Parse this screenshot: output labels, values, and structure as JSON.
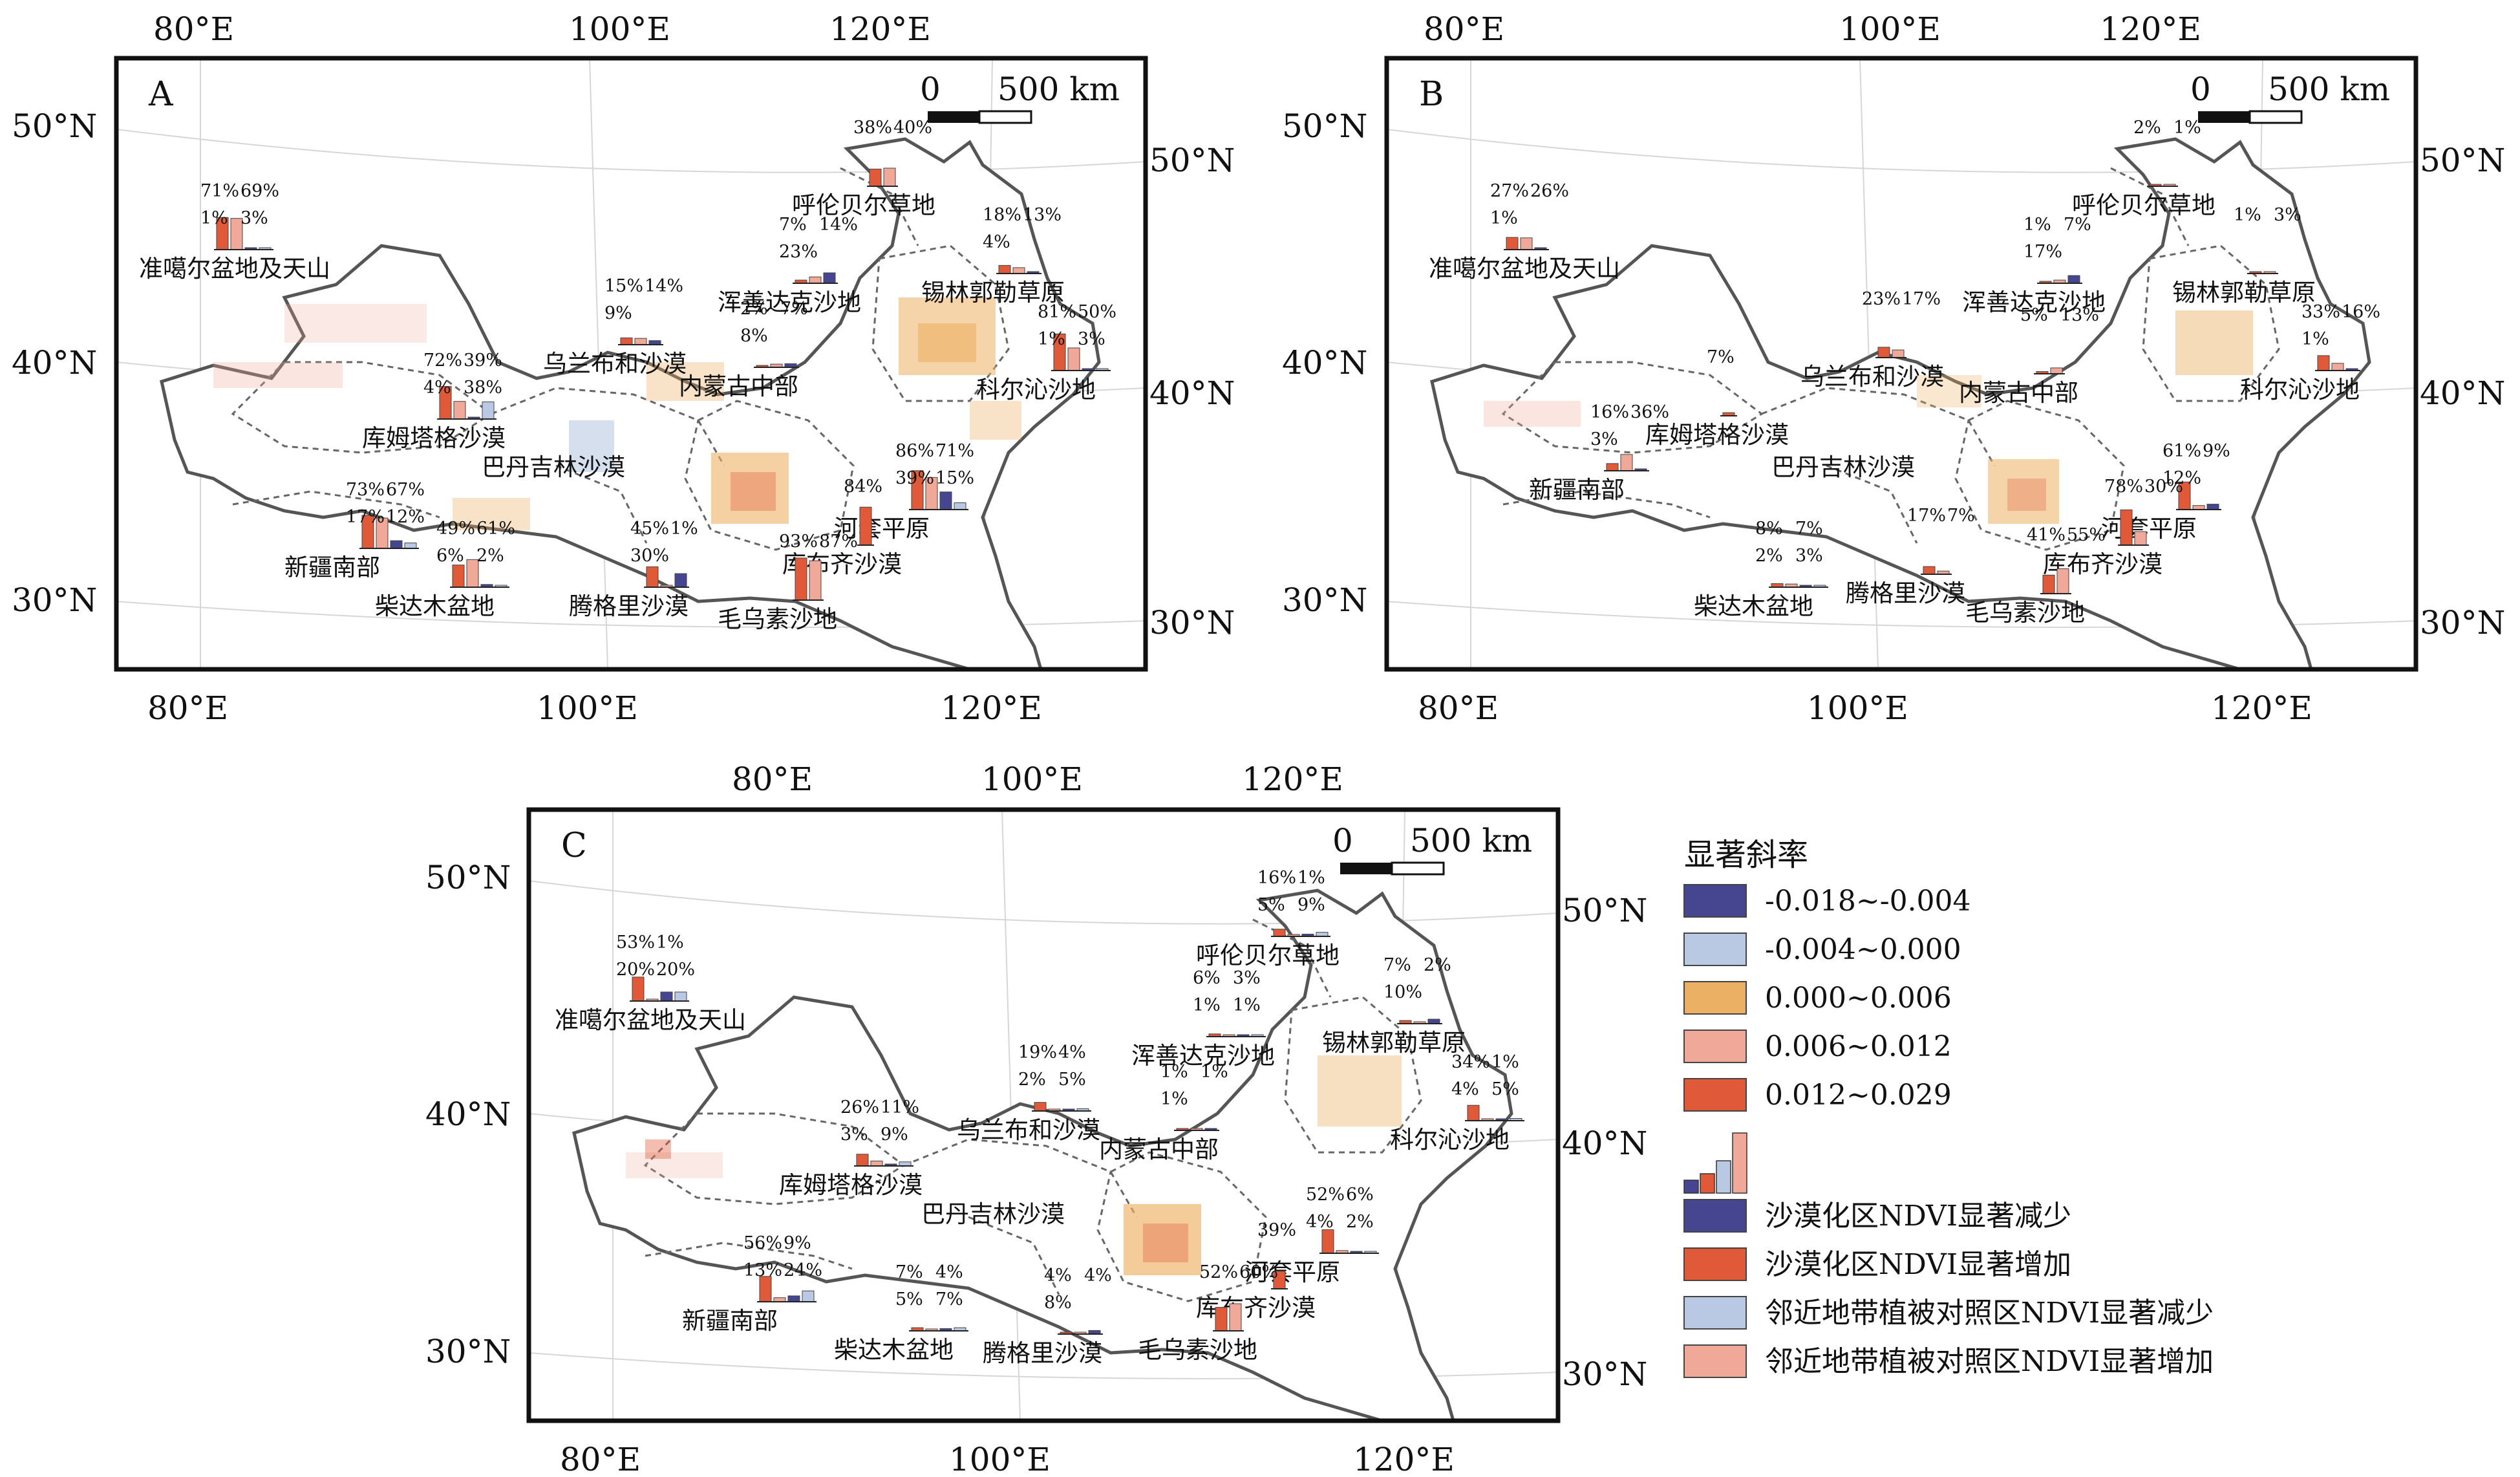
{
  "panels": [
    {
      "id": "A",
      "lon_ticks_top": [
        "80°E",
        "100°E",
        "120°E"
      ],
      "lon_ticks_bottom": [
        "80°E",
        "100°E",
        "120°E"
      ],
      "lat_ticks_left": [
        "50°N",
        "40°N",
        "30°N"
      ],
      "lat_ticks_right": [
        "50°N",
        "40°N",
        "30°N"
      ],
      "scale": {
        "zero": "0",
        "length": "500 km"
      },
      "regions": [
        {
          "name": "准噶尔盆地及天山",
          "pcts": [
            "71%",
            "69%",
            "1%",
            "3%"
          ],
          "values": [
            0.71,
            0.69,
            0.01,
            0.03
          ]
        },
        {
          "name": "呼伦贝尔草地",
          "pcts": [
            "38%",
            "40%"
          ],
          "values": [
            0.38,
            0.4
          ]
        },
        {
          "name": "锡林郭勒草原",
          "pcts": [
            "18%",
            "13%",
            "4%"
          ],
          "values": [
            0.18,
            0.13,
            0.04
          ]
        },
        {
          "name": "浑善达克沙地",
          "pcts": [
            "7%",
            "14%",
            "23%"
          ],
          "values": [
            0.07,
            0.14,
            0.23
          ]
        },
        {
          "name": "科尔沁沙地",
          "pcts": [
            "81%",
            "50%",
            "1%",
            "3%"
          ],
          "values": [
            0.81,
            0.5,
            0.01,
            0.03
          ]
        },
        {
          "name": "乌兰布和沙漠",
          "pcts": [
            "15%",
            "14%",
            "9%"
          ],
          "values": [
            0.15,
            0.14,
            0.09
          ]
        },
        {
          "name": "内蒙古中部",
          "pcts": [
            "2%",
            "7%",
            "8%"
          ],
          "values": [
            0.02,
            0.07,
            0.08
          ]
        },
        {
          "name": "库姆塔格沙漠",
          "pcts": [
            "72%",
            "39%",
            "4%",
            "38%"
          ],
          "values": [
            0.72,
            0.39,
            0.04,
            0.38
          ]
        },
        {
          "name": "巴丹吉林沙漠",
          "pcts": [],
          "values": []
        },
        {
          "name": "河套平原",
          "pcts": [
            "86%",
            "71%",
            "39%",
            "15%"
          ],
          "values": [
            0.86,
            0.71,
            0.39,
            0.15
          ]
        },
        {
          "name": "新疆南部",
          "pcts": [
            "73%",
            "67%",
            "17%",
            "12%"
          ],
          "values": [
            0.73,
            0.67,
            0.17,
            0.12
          ]
        },
        {
          "name": "柴达木盆地",
          "pcts": [
            "49%",
            "61%",
            "6%",
            "2%"
          ],
          "values": [
            0.49,
            0.61,
            0.06,
            0.02
          ]
        },
        {
          "name": "腾格里沙漠",
          "pcts": [
            "45%",
            "1%",
            "30%"
          ],
          "values": [
            0.45,
            0.01,
            0.3
          ]
        },
        {
          "name": "库布齐沙漠",
          "pcts": [
            "84%"
          ],
          "values": [
            0.84
          ]
        },
        {
          "name": "毛乌素沙地",
          "pcts": [
            "93%",
            "87%"
          ],
          "values": [
            0.93,
            0.87
          ]
        }
      ]
    },
    {
      "id": "B",
      "lon_ticks_top": [
        "80°E",
        "100°E",
        "120°E"
      ],
      "lon_ticks_bottom": [
        "80°E",
        "100°E",
        "120°E"
      ],
      "lat_ticks_left": [
        "50°N",
        "40°N",
        "30°N"
      ],
      "lat_ticks_right": [
        "50°N",
        "40°N",
        "30°N"
      ],
      "scale": {
        "zero": "0",
        "length": "500 km"
      },
      "regions": [
        {
          "name": "准噶尔盆地及天山",
          "pcts": [
            "27%",
            "26%",
            "1%"
          ],
          "values": [
            0.27,
            0.26,
            0.01
          ]
        },
        {
          "name": "呼伦贝尔草地",
          "pcts": [
            "2%",
            "1%"
          ],
          "values": [
            0.02,
            0.01
          ]
        },
        {
          "name": "锡林郭勒草原",
          "pcts": [
            "1%",
            "3%"
          ],
          "values": [
            0.01,
            0.03
          ]
        },
        {
          "name": "浑善达克沙地",
          "pcts": [
            "1%",
            "7%",
            "17%"
          ],
          "values": [
            0.01,
            0.07,
            0.17
          ]
        },
        {
          "name": "科尔沁沙地",
          "pcts": [
            "33%",
            "16%",
            "1%"
          ],
          "values": [
            0.33,
            0.16,
            0.01
          ]
        },
        {
          "name": "乌兰布和沙漠",
          "pcts": [
            "23%",
            "17%"
          ],
          "values": [
            0.23,
            0.17
          ]
        },
        {
          "name": "内蒙古中部",
          "pcts": [
            "5%",
            "13%"
          ],
          "values": [
            0.05,
            0.13
          ]
        },
        {
          "name": "库姆塔格沙漠",
          "pcts": [
            "7%"
          ],
          "values": [
            0.07
          ]
        },
        {
          "name": "巴丹吉林沙漠",
          "pcts": [],
          "values": []
        },
        {
          "name": "新疆南部",
          "pcts": [
            "16%",
            "36%",
            "3%"
          ],
          "values": [
            0.16,
            0.36,
            0.03
          ]
        },
        {
          "name": "河套平原",
          "pcts": [
            "61%",
            "9%",
            "12%"
          ],
          "values": [
            0.61,
            0.09,
            0.12
          ]
        },
        {
          "name": "库布齐沙漠",
          "pcts": [
            "78%",
            "30%"
          ],
          "values": [
            0.78,
            0.3
          ]
        },
        {
          "name": "毛乌素沙地",
          "pcts": [
            "41%",
            "55%"
          ],
          "values": [
            0.41,
            0.55
          ]
        },
        {
          "name": "腾格里沙漠",
          "pcts": [
            "17%",
            "7%"
          ],
          "values": [
            0.17,
            0.07
          ]
        },
        {
          "name": "柴达木盆地",
          "pcts": [
            "8%",
            "7%",
            "2%",
            "3%"
          ],
          "values": [
            0.08,
            0.07,
            0.02,
            0.03
          ]
        }
      ]
    },
    {
      "id": "C",
      "lon_ticks_top": [
        "80°E",
        "100°E",
        "120°E"
      ],
      "lon_ticks_bottom": [
        "80°E",
        "100°E",
        "120°E"
      ],
      "lat_ticks_left": [
        "50°N",
        "40°N",
        "30°N"
      ],
      "lat_ticks_right": [
        "50°N",
        "40°N",
        "30°N"
      ],
      "scale": {
        "zero": "0",
        "length": "500 km"
      },
      "regions": [
        {
          "name": "准噶尔盆地及天山",
          "pcts": [
            "53%",
            "1%",
            "20%",
            "20%"
          ],
          "values": [
            0.53,
            0.01,
            0.2,
            0.2
          ]
        },
        {
          "name": "呼伦贝尔草地",
          "pcts": [
            "16%",
            "1%",
            "5%",
            "9%"
          ],
          "values": [
            0.16,
            0.01,
            0.05,
            0.09
          ]
        },
        {
          "name": "锡林郭勒草原",
          "pcts": [
            "7%",
            "2%",
            "10%"
          ],
          "values": [
            0.07,
            0.02,
            0.1
          ]
        },
        {
          "name": "浑善达克沙地",
          "pcts": [
            "6%",
            "3%",
            "1%",
            "1%"
          ],
          "values": [
            0.06,
            0.03,
            0.01,
            0.01
          ]
        },
        {
          "name": "科尔沁沙地",
          "pcts": [
            "34%",
            "1%",
            "4%",
            "5%"
          ],
          "values": [
            0.34,
            0.01,
            0.04,
            0.05
          ]
        },
        {
          "name": "乌兰布和沙漠",
          "pcts": [
            "19%",
            "4%",
            "2%",
            "5%"
          ],
          "values": [
            0.19,
            0.04,
            0.02,
            0.05
          ]
        },
        {
          "name": "内蒙古中部",
          "pcts": [
            "1%",
            "1%",
            "1%"
          ],
          "values": [
            0.01,
            0.01,
            0.01
          ]
        },
        {
          "name": "库姆塔格沙漠",
          "pcts": [
            "26%",
            "11%",
            "3%",
            "9%"
          ],
          "values": [
            0.26,
            0.11,
            0.03,
            0.09
          ]
        },
        {
          "name": "巴丹吉林沙漠",
          "pcts": [],
          "values": []
        },
        {
          "name": "河套平原",
          "pcts": [
            "52%",
            "6%",
            "4%",
            "2%"
          ],
          "values": [
            0.52,
            0.06,
            0.04,
            0.02
          ]
        },
        {
          "name": "库布齐沙漠",
          "pcts": [
            "39%"
          ],
          "values": [
            0.39
          ]
        },
        {
          "name": "新疆南部",
          "pcts": [
            "56%",
            "9%",
            "13%",
            "24%"
          ],
          "values": [
            0.56,
            0.09,
            0.13,
            0.24
          ]
        },
        {
          "name": "柴达木盆地",
          "pcts": [
            "7%",
            "4%",
            "5%",
            "7%"
          ],
          "values": [
            0.07,
            0.04,
            0.05,
            0.07
          ]
        },
        {
          "name": "腾格里沙漠",
          "pcts": [
            "4%",
            "4%",
            "8%"
          ],
          "values": [
            0.04,
            0.04,
            0.08
          ]
        },
        {
          "name": "毛乌素沙地",
          "pcts": [
            "52%",
            "60%"
          ],
          "values": [
            0.52,
            0.6
          ]
        }
      ]
    }
  ],
  "legend": {
    "slope_title": "显著斜率",
    "slope_classes": [
      {
        "label": "-0.018~-0.004",
        "color": "#46458f"
      },
      {
        "label": "-0.004~0.000",
        "color": "#b9c9e3"
      },
      {
        "label": "0.000~0.006",
        "color": "#ecb064"
      },
      {
        "label": "0.006~0.012",
        "color": "#f0a898"
      },
      {
        "label": "0.012~0.029",
        "color": "#e05a3a"
      }
    ],
    "bar_classes": [
      {
        "label": "沙漠化区NDVI显著减少",
        "color": "#46458f"
      },
      {
        "label": "沙漠化区NDVI显著增加",
        "color": "#e05a3a"
      },
      {
        "label": "邻近地带植被对照区NDVI显著减少",
        "color": "#b9c9e3"
      },
      {
        "label": "邻近地带植被对照区NDVI显著增加",
        "color": "#f0a898"
      }
    ]
  }
}
